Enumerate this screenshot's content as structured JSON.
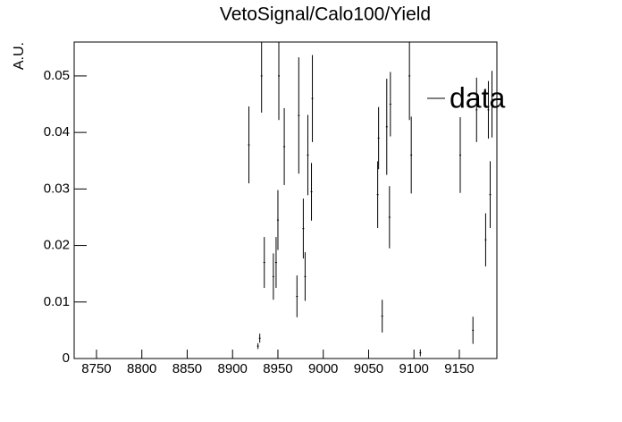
{
  "chart_data": {
    "type": "errorbar",
    "title": "VetoSignal/Calo100/Yield",
    "y_label": "A.U.",
    "xlim": [
      8725.4,
      9191.4
    ],
    "ylim": [
      0,
      0.056
    ],
    "xticks": [
      8750,
      8800,
      8850,
      8900,
      8950,
      9000,
      9050,
      9100,
      9150
    ],
    "yticks": [
      0,
      0.01,
      0.02,
      0.03,
      0.04,
      0.05
    ],
    "legend": "top-right",
    "series": [
      {
        "name": "data",
        "color": "#000000",
        "x": [
          8918,
          8928,
          8930,
          8932,
          8935,
          8945,
          8948,
          8950,
          8951,
          8957,
          8971,
          8973,
          8978,
          8980,
          8983,
          8987,
          8988,
          9060,
          9061,
          9065,
          9070,
          9073,
          9074,
          9095,
          9097,
          9107,
          9151,
          9165,
          9169,
          9179,
          9182,
          9184,
          9186
        ],
        "values": [
          0.0378,
          0.0022,
          0.0036,
          0.05,
          0.017,
          0.0145,
          0.017,
          0.0245,
          0.05,
          0.0375,
          0.011,
          0.043,
          0.023,
          0.0145,
          0.036,
          0.0295,
          0.046,
          0.029,
          0.039,
          0.0075,
          0.041,
          0.025,
          0.045,
          0.05,
          0.036,
          0.001,
          0.036,
          0.005,
          0.044,
          0.021,
          0.044,
          0.029,
          0.045
        ],
        "errors": [
          0.0068,
          0.0005,
          0.0008,
          0.0065,
          0.0045,
          0.0041,
          0.0045,
          0.0053,
          0.0078,
          0.0068,
          0.0037,
          0.0103,
          0.0053,
          0.0043,
          0.0071,
          0.0051,
          0.0077,
          0.0059,
          0.0055,
          0.0029,
          0.0085,
          0.0055,
          0.0057,
          0.0078,
          0.0068,
          0.0006,
          0.0067,
          0.0024,
          0.0057,
          0.0047,
          0.0051,
          0.0059,
          0.0059
        ]
      }
    ]
  }
}
